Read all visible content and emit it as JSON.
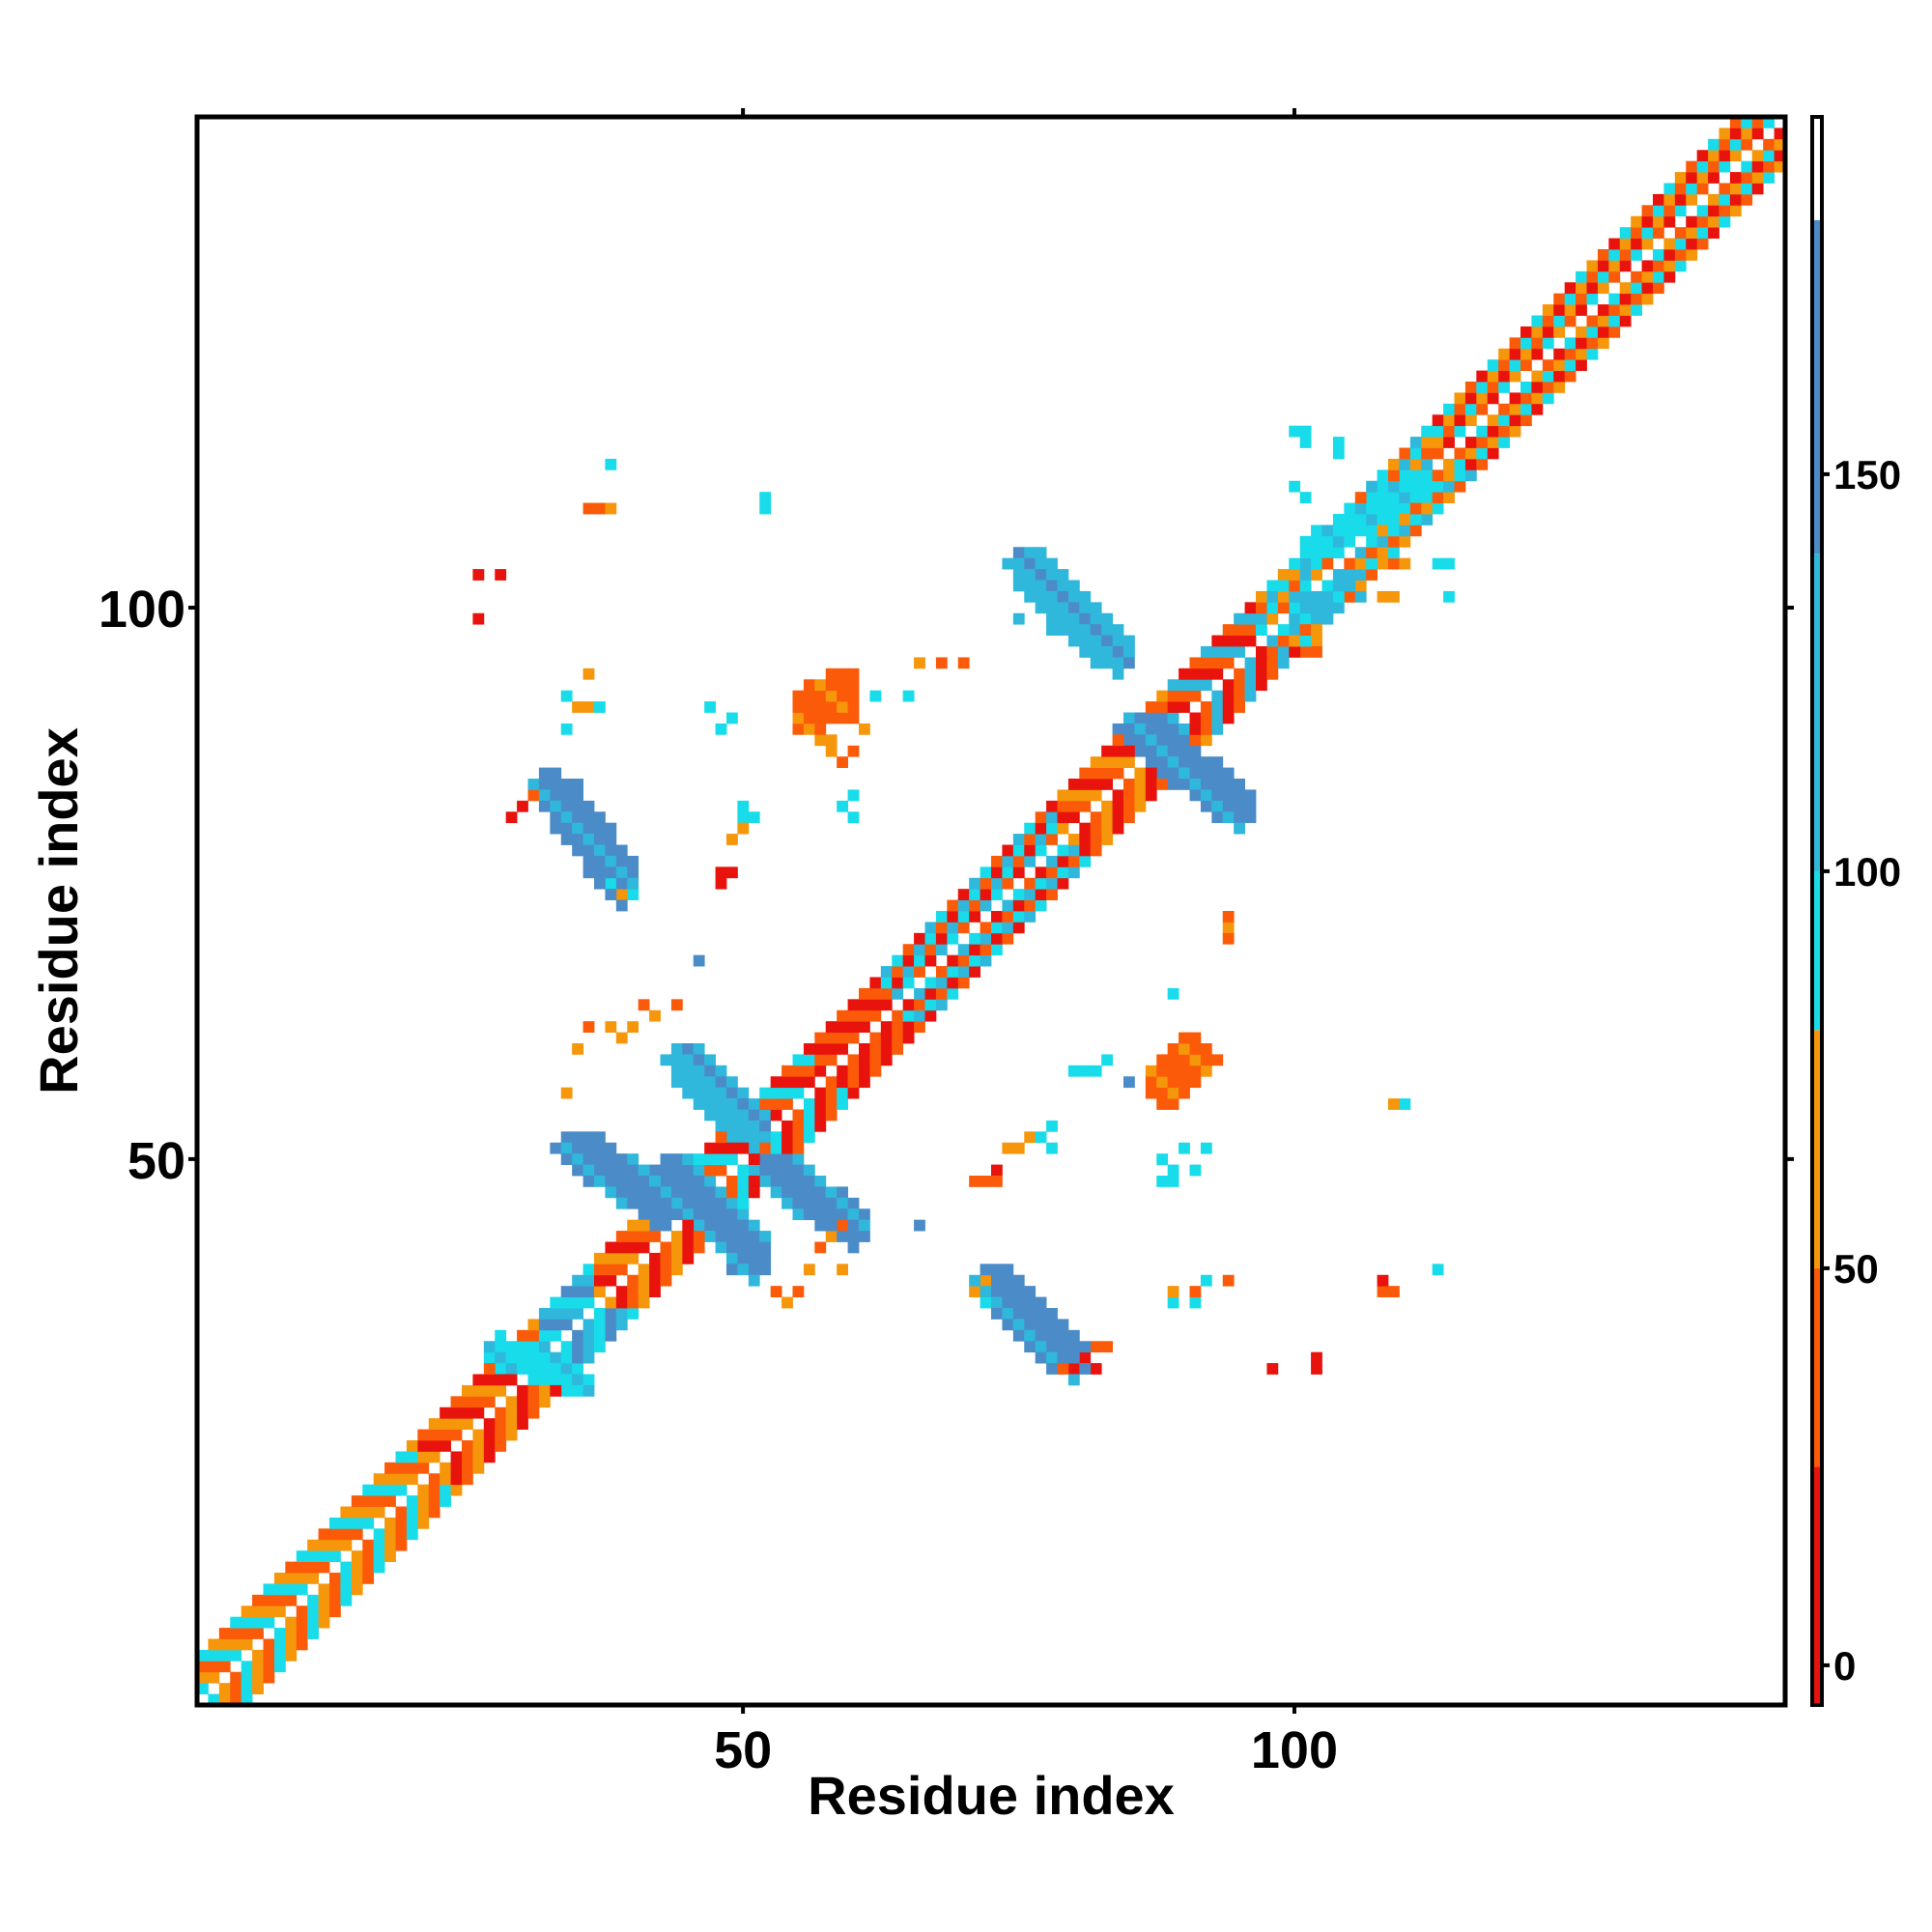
{
  "chart_data": {
    "type": "heatmap",
    "title": "",
    "xlabel": "Residue index",
    "ylabel": "Residue index",
    "xlim": [
      1,
      144
    ],
    "ylim": [
      1,
      144
    ],
    "x_ticks": [
      50,
      100
    ],
    "y_ticks": [
      50,
      100
    ],
    "colorbar": {
      "ticks": [
        0,
        50,
        100,
        150
      ],
      "range": [
        -5,
        195
      ],
      "bands": [
        {
          "from": -5,
          "to": 25,
          "color": "#e8130c"
        },
        {
          "from": 25,
          "to": 50,
          "color": "#fb5a08"
        },
        {
          "from": 50,
          "to": 80,
          "color": "#f6960a"
        },
        {
          "from": 80,
          "to": 100,
          "color": "#18dcea"
        },
        {
          "from": 100,
          "to": 140,
          "color": "#2fb8dc"
        },
        {
          "from": 140,
          "to": 182,
          "color": "#4b8cc8"
        },
        {
          "from": 182,
          "to": 195,
          "color": "#ffffff"
        }
      ]
    },
    "regions": {
      "diagonal_band": [
        {
          "from": 1,
          "to": 20,
          "colors": [
            "#f6960a",
            "#fb5a08",
            "#18dcea"
          ]
        },
        {
          "from": 20,
          "to": 31,
          "colors": [
            "#e8130c",
            "#fb5a08",
            "#f6960a"
          ]
        },
        {
          "from": 31,
          "to": 36,
          "colors": [
            "#2fb8dc",
            "#18dcea",
            "#4b8cc8"
          ]
        },
        {
          "from": 36,
          "to": 44,
          "colors": [
            "#e8130c",
            "#fb5a08",
            "#f6960a"
          ]
        },
        {
          "from": 44,
          "to": 56,
          "colors": [
            "#e8130c",
            "#fb5a08",
            "#18dcea"
          ]
        },
        {
          "from": 56,
          "to": 62,
          "colors": [
            "#e8130c",
            "#fb5a08"
          ]
        },
        {
          "from": 62,
          "to": 78,
          "colors": [
            "#18dcea",
            "#2fb8dc",
            "#e8130c",
            "#fb5a08"
          ]
        },
        {
          "from": 78,
          "to": 88,
          "colors": [
            "#e8130c",
            "#fb5a08",
            "#f6960a"
          ]
        },
        {
          "from": 88,
          "to": 96,
          "colors": [
            "#2fb8dc",
            "#e8130c",
            "#fb5a08"
          ]
        },
        {
          "from": 96,
          "to": 112,
          "colors": [
            "#18dcea",
            "#2fb8dc",
            "#fb5a08",
            "#f6960a"
          ]
        },
        {
          "from": 112,
          "to": 144,
          "colors": [
            "#fb5a08",
            "#f6960a",
            "#18dcea",
            "#e8130c"
          ]
        }
      ],
      "strands": [
        {
          "from": [
            43,
            50
          ],
          "to": [
            52,
            40
          ],
          "width": 3.2,
          "color": "#4b8cc8",
          "alt": "#2fb8dc"
        },
        {
          "from": [
            34,
            52
          ],
          "to": [
            44,
            45
          ],
          "width": 3.2,
          "color": "#4b8cc8",
          "alt": "#2fb8dc"
        },
        {
          "from": [
            44,
            60
          ],
          "to": [
            52,
            52
          ],
          "width": 3.2,
          "color": "#2fb8dc",
          "alt": "#4b8cc8"
        },
        {
          "from": [
            52,
            50
          ],
          "to": [
            61,
            43
          ],
          "width": 3.2,
          "color": "#4b8cc8",
          "alt": "#2fb8dc"
        },
        {
          "from": [
            75,
            105
          ],
          "to": [
            85,
            95
          ],
          "width": 3.2,
          "color": "#2fb8dc",
          "alt": "#4b8cc8"
        },
        {
          "from": [
            85,
            90
          ],
          "to": [
            96,
            81
          ],
          "width": 3.2,
          "color": "#4b8cc8",
          "alt": "#2fb8dc"
        },
        {
          "from": [
            32,
            85
          ],
          "to": [
            40,
            74
          ],
          "width": 3.2,
          "color": "#4b8cc8",
          "alt": "#2fb8dc"
        },
        {
          "from": [
            72,
            40
          ],
          "to": [
            81,
            31
          ],
          "width": 3.2,
          "color": "#4b8cc8",
          "alt": "#2fb8dc"
        },
        {
          "from": [
            55,
            90
          ],
          "to": [
            60,
            93
          ],
          "width": 3.0,
          "color": "#fb5a08",
          "alt": "#f6960a"
        },
        {
          "from": [
            87,
            56
          ],
          "to": [
            92,
            60
          ],
          "width": 3.0,
          "color": "#fb5a08",
          "alt": "#f6960a"
        },
        {
          "from": [
            100,
            99
          ],
          "to": [
            106,
            103
          ],
          "width": 2.4,
          "color": "#2fb8dc",
          "alt": "#18dcea"
        },
        {
          "from": [
            101,
            105
          ],
          "to": [
            112,
            112
          ],
          "width": 2.4,
          "color": "#18dcea",
          "alt": "#2fb8dc"
        },
        {
          "from": [
            27,
            33
          ],
          "to": [
            36,
            30
          ],
          "width": 2.2,
          "color": "#18dcea",
          "alt": "#2fb8dc"
        }
      ],
      "specks": [
        [
          38,
          113,
          "#18dcea"
        ],
        [
          36,
          109,
          "#fb5a08"
        ],
        [
          37,
          109,
          "#fb5a08"
        ],
        [
          38,
          109,
          "#f6960a"
        ],
        [
          52,
          110,
          "#18dcea"
        ],
        [
          52,
          109,
          "#18dcea"
        ],
        [
          26,
          103,
          "#e8130c"
        ],
        [
          28,
          103,
          "#e8130c"
        ],
        [
          26,
          99,
          "#e8130c"
        ],
        [
          36,
          94,
          "#f6960a"
        ],
        [
          34,
          92,
          "#18dcea"
        ],
        [
          35,
          91,
          "#f6960a"
        ],
        [
          36,
          91,
          "#f6960a"
        ],
        [
          37,
          91,
          "#18dcea"
        ],
        [
          34,
          89,
          "#18dcea"
        ],
        [
          47,
          91,
          "#18dcea"
        ],
        [
          49,
          90,
          "#18dcea"
        ],
        [
          48,
          89,
          "#18dcea"
        ],
        [
          62,
          92,
          "#18dcea"
        ],
        [
          65,
          92,
          "#18dcea"
        ],
        [
          58,
          88,
          "#f6960a"
        ],
        [
          60,
          87,
          "#fb5a08"
        ],
        [
          59,
          86,
          "#fb5a08"
        ],
        [
          58,
          87,
          "#f6960a"
        ],
        [
          57,
          88,
          "#f6960a"
        ],
        [
          61,
          89,
          "#f6960a"
        ],
        [
          60,
          90,
          "#fb5a08"
        ],
        [
          68,
          95,
          "#fb5a08"
        ],
        [
          70,
          95,
          "#fb5a08"
        ],
        [
          66,
          95,
          "#f6960a"
        ],
        [
          78,
          98,
          "#2fb8dc"
        ],
        [
          75,
          99,
          "#2fb8dc"
        ],
        [
          29,
          81,
          "#e8130c"
        ],
        [
          30,
          82,
          "#e8130c"
        ],
        [
          31,
          83,
          "#fb5a08"
        ],
        [
          50,
          82,
          "#18dcea"
        ],
        [
          50,
          81,
          "#18dcea"
        ],
        [
          51,
          81,
          "#18dcea"
        ],
        [
          49,
          79,
          "#f6960a"
        ],
        [
          50,
          80,
          "#f6960a"
        ],
        [
          48,
          76,
          "#e8130c"
        ],
        [
          49,
          76,
          "#e8130c"
        ],
        [
          48,
          75,
          "#e8130c"
        ],
        [
          60,
          83,
          "#18dcea"
        ],
        [
          59,
          82,
          "#18dcea"
        ],
        [
          60,
          81,
          "#18dcea"
        ],
        [
          38,
          75,
          "#18dcea"
        ],
        [
          39,
          74,
          "#f6960a"
        ],
        [
          40,
          74,
          "#18dcea"
        ],
        [
          46,
          68,
          "#4b8cc8"
        ],
        [
          41,
          64,
          "#fb5a08"
        ],
        [
          42,
          63,
          "#f6960a"
        ],
        [
          44,
          64,
          "#fb5a08"
        ],
        [
          40,
          62,
          "#f6960a"
        ],
        [
          39,
          61,
          "#f6960a"
        ],
        [
          35,
          60,
          "#f6960a"
        ],
        [
          34,
          56,
          "#f6960a"
        ],
        [
          36,
          62,
          "#fb5a08"
        ],
        [
          38,
          62,
          "#f6960a"
        ],
        [
          59,
          44,
          "#fb5a08"
        ],
        [
          58,
          43,
          "#f6960a"
        ],
        [
          57,
          42,
          "#fb5a08"
        ],
        [
          56,
          40,
          "#f6960a"
        ],
        [
          55,
          38,
          "#fb5a08"
        ],
        [
          53,
          38,
          "#fb5a08"
        ],
        [
          54,
          37,
          "#f6960a"
        ],
        [
          59,
          40,
          "#f6960a"
        ],
        [
          66,
          44,
          "#4b8cc8"
        ],
        [
          71,
          48,
          "#fb5a08"
        ],
        [
          72,
          48,
          "#fb5a08"
        ],
        [
          73,
          49,
          "#e8130c"
        ],
        [
          73,
          48,
          "#fb5a08"
        ],
        [
          74,
          51,
          "#f6960a"
        ],
        [
          75,
          51,
          "#f6960a"
        ],
        [
          76,
          52,
          "#f6960a"
        ],
        [
          77,
          52,
          "#18dcea"
        ],
        [
          78,
          53,
          "#18dcea"
        ],
        [
          78,
          51,
          "#18dcea"
        ],
        [
          80,
          58,
          "#18dcea"
        ],
        [
          81,
          58,
          "#18dcea"
        ],
        [
          82,
          58,
          "#18dcea"
        ],
        [
          83,
          59,
          "#18dcea"
        ],
        [
          85,
          57,
          "#4b8cc8"
        ],
        [
          89,
          65,
          "#18dcea"
        ],
        [
          94,
          71,
          "#f6960a"
        ],
        [
          94,
          70,
          "#fb5a08"
        ],
        [
          94,
          72,
          "#fb5a08"
        ],
        [
          88,
          50,
          "#18dcea"
        ],
        [
          89,
          49,
          "#18dcea"
        ],
        [
          90,
          51,
          "#18dcea"
        ],
        [
          89,
          48,
          "#18dcea"
        ],
        [
          88,
          48,
          "#18dcea"
        ],
        [
          91,
          49,
          "#18dcea"
        ],
        [
          92,
          51,
          "#18dcea"
        ],
        [
          89,
          37,
          "#18dcea"
        ],
        [
          89,
          38,
          "#f6960a"
        ],
        [
          91,
          37,
          "#18dcea"
        ],
        [
          91,
          38,
          "#fb5a08"
        ],
        [
          94,
          39,
          "#fb5a08"
        ],
        [
          92,
          39,
          "#18dcea"
        ],
        [
          81,
          32,
          "#e8130c"
        ],
        [
          80,
          31,
          "#e8130c"
        ],
        [
          82,
          31,
          "#e8130c"
        ],
        [
          79,
          31,
          "#fb5a08"
        ],
        [
          82,
          33,
          "#fb5a08"
        ],
        [
          83,
          33,
          "#fb5a08"
        ],
        [
          71,
          38,
          "#f6960a"
        ],
        [
          72,
          39,
          "#f6960a"
        ],
        [
          72,
          37,
          "#18dcea"
        ],
        [
          98,
          31,
          "#e8130c"
        ],
        [
          102,
          31,
          "#e8130c"
        ],
        [
          102,
          32,
          "#e8130c"
        ],
        [
          108,
          38,
          "#fb5a08"
        ],
        [
          108,
          39,
          "#e8130c"
        ],
        [
          109,
          38,
          "#fb5a08"
        ],
        [
          113,
          40,
          "#18dcea"
        ],
        [
          110,
          55,
          "#18dcea"
        ],
        [
          109,
          55,
          "#f6960a"
        ],
        [
          100,
          116,
          "#18dcea"
        ],
        [
          101,
          116,
          "#18dcea"
        ],
        [
          101,
          115,
          "#18dcea"
        ],
        [
          104,
          115,
          "#18dcea"
        ],
        [
          104,
          114,
          "#18dcea"
        ],
        [
          100,
          111,
          "#18dcea"
        ],
        [
          101,
          110,
          "#18dcea"
        ],
        [
          108,
          104,
          "#f6960a"
        ],
        [
          109,
          104,
          "#fb5a08"
        ],
        [
          110,
          104,
          "#f6960a"
        ],
        [
          113,
          104,
          "#18dcea"
        ],
        [
          114,
          104,
          "#18dcea"
        ],
        [
          114,
          101,
          "#18dcea"
        ],
        [
          108,
          101,
          "#f6960a"
        ],
        [
          109,
          101,
          "#f6960a"
        ],
        [
          105,
          101,
          "#fb5a08"
        ],
        [
          106,
          102,
          "#f6960a"
        ],
        [
          102,
          97,
          "#f6960a"
        ],
        [
          102,
          96,
          "#fb5a08"
        ],
        [
          101,
          96,
          "#fb5a08"
        ],
        [
          99,
          103,
          "#f6960a"
        ],
        [
          98,
          102,
          "#18dcea"
        ]
      ]
    }
  }
}
